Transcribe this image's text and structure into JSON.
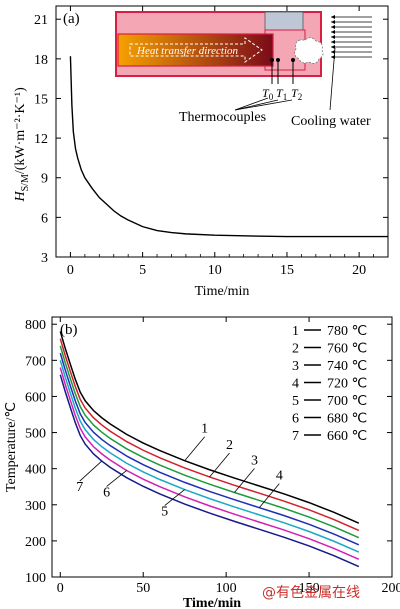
{
  "watermark": "@有色金属在线",
  "chart_data": [
    {
      "panel": "(a)",
      "type": "line",
      "xlabel": "Time/min",
      "ylabel_main": "H",
      "ylabel_sub": "S/M",
      "ylabel_unit": "/(kW·m⁻²·K⁻¹)",
      "xlim": [
        -1,
        22
      ],
      "ylim": [
        3,
        22
      ],
      "xticks": [
        0,
        5,
        10,
        15,
        20
      ],
      "yticks": [
        3,
        6,
        9,
        12,
        15,
        18,
        21
      ],
      "series": [
        {
          "color": "#000000",
          "x": [
            0,
            0.1,
            0.2,
            0.35,
            0.5,
            0.75,
            1,
            1.5,
            2,
            2.5,
            3,
            3.5,
            4,
            5,
            6,
            7,
            8,
            10,
            12,
            15,
            18,
            22
          ],
          "y": [
            18.2,
            14.5,
            12.5,
            11.2,
            10.5,
            9.6,
            9.0,
            8.2,
            7.5,
            7.0,
            6.5,
            6.1,
            5.8,
            5.3,
            5.0,
            4.85,
            4.75,
            4.65,
            4.6,
            4.55,
            4.55,
            4.55
          ]
        }
      ],
      "inset": {
        "direction_label": "Heat transfer direction",
        "thermocouple_labels": [
          "T",
          "T",
          "T"
        ],
        "thermocouple_subs": [
          "0",
          "1",
          "2"
        ],
        "thermocouples_label": "Thermocouples",
        "cooling_label": "Cooling water",
        "colors": {
          "mold_pink": "#f4a6b4",
          "border": "#d81e42",
          "gradient_start": "#f6a100",
          "gradient_end": "#7a0a1a",
          "copper_block": "#bfc7d6"
        }
      }
    },
    {
      "panel": "(b)",
      "type": "line",
      "xlabel": "Time/min",
      "ylabel": "Temperature/℃",
      "xlim": [
        -5,
        200
      ],
      "ylim": [
        100,
        820
      ],
      "xticks": [
        0,
        50,
        100,
        150,
        200
      ],
      "yticks": [
        100,
        200,
        300,
        400,
        500,
        600,
        700,
        800
      ],
      "x": [
        0,
        3,
        6,
        9,
        12,
        15,
        20,
        25,
        30,
        40,
        50,
        60,
        75,
        90,
        105,
        120,
        135,
        150,
        165,
        180
      ],
      "series": [
        {
          "name": "780 ℃",
          "label": "1",
          "color": "#000000",
          "values": [
            780,
            733,
            690,
            648,
            612,
            588,
            561,
            541,
            524,
            495,
            471,
            450,
            422,
            397,
            374,
            352,
            330,
            306,
            279,
            249
          ]
        },
        {
          "name": "760 ℃",
          "label": "2",
          "color": "#d2202a",
          "values": [
            760,
            713,
            670,
            628,
            592,
            568,
            541,
            521,
            504,
            475,
            451,
            430,
            402,
            377,
            354,
            332,
            310,
            286,
            259,
            229
          ]
        },
        {
          "name": "740 ℃",
          "label": "3",
          "color": "#1d9a3d",
          "values": [
            740,
            693,
            650,
            608,
            572,
            548,
            521,
            501,
            484,
            455,
            431,
            410,
            382,
            357,
            334,
            312,
            290,
            266,
            239,
            209
          ]
        },
        {
          "name": "720 ℃",
          "label": "4",
          "color": "#1c2fb5",
          "values": [
            720,
            673,
            630,
            588,
            552,
            528,
            501,
            481,
            464,
            435,
            411,
            390,
            362,
            337,
            314,
            292,
            270,
            246,
            219,
            189
          ]
        },
        {
          "name": "700 ℃",
          "label": "5",
          "color": "#1aa9c6",
          "values": [
            700,
            653,
            610,
            568,
            532,
            508,
            481,
            461,
            444,
            415,
            391,
            370,
            342,
            317,
            294,
            272,
            250,
            226,
            199,
            169
          ]
        },
        {
          "name": "680 ℃",
          "label": "6",
          "color": "#d21fb5",
          "values": [
            680,
            633,
            590,
            548,
            512,
            488,
            461,
            441,
            424,
            395,
            371,
            350,
            322,
            297,
            274,
            252,
            230,
            206,
            179,
            149
          ]
        },
        {
          "name": "660 ℃",
          "label": "7",
          "color": "#151a8a",
          "values": [
            660,
            613,
            570,
            528,
            492,
            468,
            441,
            421,
            404,
            375,
            351,
            330,
            302,
            277,
            254,
            232,
            210,
            186,
            159,
            129
          ]
        }
      ],
      "legend": {
        "placement": "top-right",
        "entries": [
          {
            "num": "1",
            "text": "780 ℃"
          },
          {
            "num": "2",
            "text": "760 ℃"
          },
          {
            "num": "3",
            "text": "740 ℃"
          },
          {
            "num": "4",
            "text": "720 ℃"
          },
          {
            "num": "5",
            "text": "700 ℃"
          },
          {
            "num": "6",
            "text": "680 ℃"
          },
          {
            "num": "7",
            "text": "660 ℃"
          }
        ]
      }
    }
  ]
}
